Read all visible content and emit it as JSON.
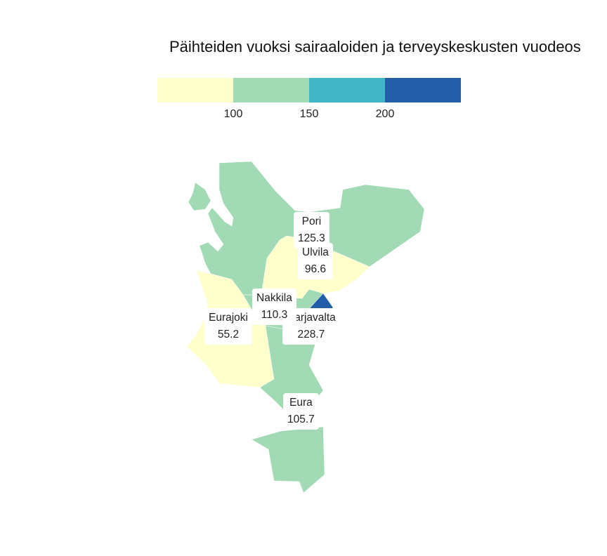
{
  "title": "Päihteiden vuoksi sairaaloiden ja terveyskeskusten vuodeos",
  "legend": {
    "colors": [
      "#ffffcc",
      "#a1dab4",
      "#41b6c4",
      "#225ea8"
    ],
    "ticks": [
      "100",
      "150",
      "200"
    ]
  },
  "regions": [
    {
      "name": "Pori",
      "value": "125.3",
      "color": "#a1dab4"
    },
    {
      "name": "Ulvila",
      "value": "96.6",
      "color": "#ffffcc"
    },
    {
      "name": "Nakkila",
      "value": "110.3",
      "color": "#a1dab4"
    },
    {
      "name": "Harjavalta",
      "value": "228.7",
      "color": "#225ea8"
    },
    {
      "name": "Eurajoki",
      "value": "55.2",
      "color": "#ffffcc"
    },
    {
      "name": "Eura",
      "value": "105.7",
      "color": "#a1dab4"
    }
  ]
}
